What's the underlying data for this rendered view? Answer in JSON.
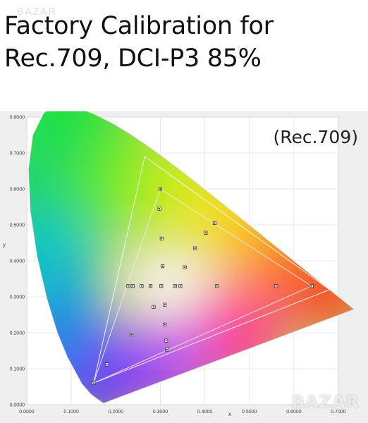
{
  "headline": {
    "line1": "Factory Calibration for",
    "line2": "Rec.709, DCI-P3 85%"
  },
  "watermark_top": "BAZAR",
  "logo_watermark": "BAZAR",
  "chart_data": {
    "type": "scatter",
    "title": "",
    "annotation": "(Rec.709)",
    "xlabel": "x",
    "ylabel": "y",
    "xlim": [
      0.0,
      0.7
    ],
    "ylim": [
      0.0,
      0.8
    ],
    "x_ticks": [
      "0.0000",
      "0.1000",
      "0.2000",
      "0.3000",
      "0.4000",
      "0.5000",
      "0.6000",
      "0.7000"
    ],
    "y_ticks": [
      "0.0000",
      "0.1000",
      "0.2000",
      "0.3000",
      "0.4000",
      "0.5000",
      "0.6000",
      "0.7000",
      "0.8000"
    ],
    "grid": true,
    "gamut_triangles": [
      {
        "vertices": [
          [
            0.64,
            0.33
          ],
          [
            0.3,
            0.6
          ],
          [
            0.15,
            0.06
          ]
        ]
      },
      {
        "vertices": [
          [
            0.68,
            0.32
          ],
          [
            0.265,
            0.69
          ],
          [
            0.15,
            0.06
          ]
        ]
      }
    ],
    "measured_points": [
      [
        0.3,
        0.6
      ],
      [
        0.298,
        0.545
      ],
      [
        0.303,
        0.462
      ],
      [
        0.305,
        0.385
      ],
      [
        0.302,
        0.33
      ],
      [
        0.278,
        0.33
      ],
      [
        0.258,
        0.33
      ],
      [
        0.238,
        0.33
      ],
      [
        0.228,
        0.33
      ],
      [
        0.333,
        0.33
      ],
      [
        0.345,
        0.33
      ],
      [
        0.355,
        0.382
      ],
      [
        0.378,
        0.435
      ],
      [
        0.402,
        0.478
      ],
      [
        0.422,
        0.505
      ],
      [
        0.427,
        0.33
      ],
      [
        0.56,
        0.33
      ],
      [
        0.64,
        0.33
      ],
      [
        0.285,
        0.272
      ],
      [
        0.31,
        0.278
      ],
      [
        0.31,
        0.223
      ],
      [
        0.313,
        0.178
      ],
      [
        0.315,
        0.153
      ],
      [
        0.235,
        0.195
      ],
      [
        0.18,
        0.112
      ],
      [
        0.15,
        0.06
      ]
    ],
    "spectral_locus": [
      [
        0.1741,
        0.005
      ],
      [
        0.1738,
        0.0049
      ],
      [
        0.1733,
        0.0048
      ],
      [
        0.1726,
        0.0048
      ],
      [
        0.1714,
        0.0051
      ],
      [
        0.1689,
        0.0069
      ],
      [
        0.1644,
        0.0109
      ],
      [
        0.1566,
        0.0177
      ],
      [
        0.144,
        0.0297
      ],
      [
        0.1241,
        0.0578
      ],
      [
        0.0913,
        0.1327
      ],
      [
        0.0687,
        0.2007
      ],
      [
        0.0454,
        0.295
      ],
      [
        0.0235,
        0.4127
      ],
      [
        0.0082,
        0.5384
      ],
      [
        0.0039,
        0.6548
      ],
      [
        0.0139,
        0.7502
      ],
      [
        0.0389,
        0.812
      ],
      [
        0.0743,
        0.8338
      ],
      [
        0.1142,
        0.8262
      ],
      [
        0.1547,
        0.8059
      ],
      [
        0.1929,
        0.7816
      ],
      [
        0.2296,
        0.7543
      ],
      [
        0.2658,
        0.7243
      ],
      [
        0.3016,
        0.6923
      ],
      [
        0.3373,
        0.6589
      ],
      [
        0.3731,
        0.6245
      ],
      [
        0.4087,
        0.5896
      ],
      [
        0.4441,
        0.5547
      ],
      [
        0.4788,
        0.5202
      ],
      [
        0.5125,
        0.4866
      ],
      [
        0.5448,
        0.4544
      ],
      [
        0.5752,
        0.4242
      ],
      [
        0.6029,
        0.3965
      ],
      [
        0.627,
        0.3725
      ],
      [
        0.6482,
        0.3514
      ],
      [
        0.6658,
        0.334
      ],
      [
        0.6801,
        0.3197
      ],
      [
        0.6915,
        0.3083
      ],
      [
        0.7006,
        0.2993
      ],
      [
        0.7079,
        0.292
      ],
      [
        0.714,
        0.2859
      ],
      [
        0.719,
        0.2809
      ],
      [
        0.723,
        0.277
      ],
      [
        0.726,
        0.274
      ],
      [
        0.7283,
        0.2717
      ],
      [
        0.73,
        0.27
      ],
      [
        0.7347,
        0.2653
      ]
    ]
  }
}
